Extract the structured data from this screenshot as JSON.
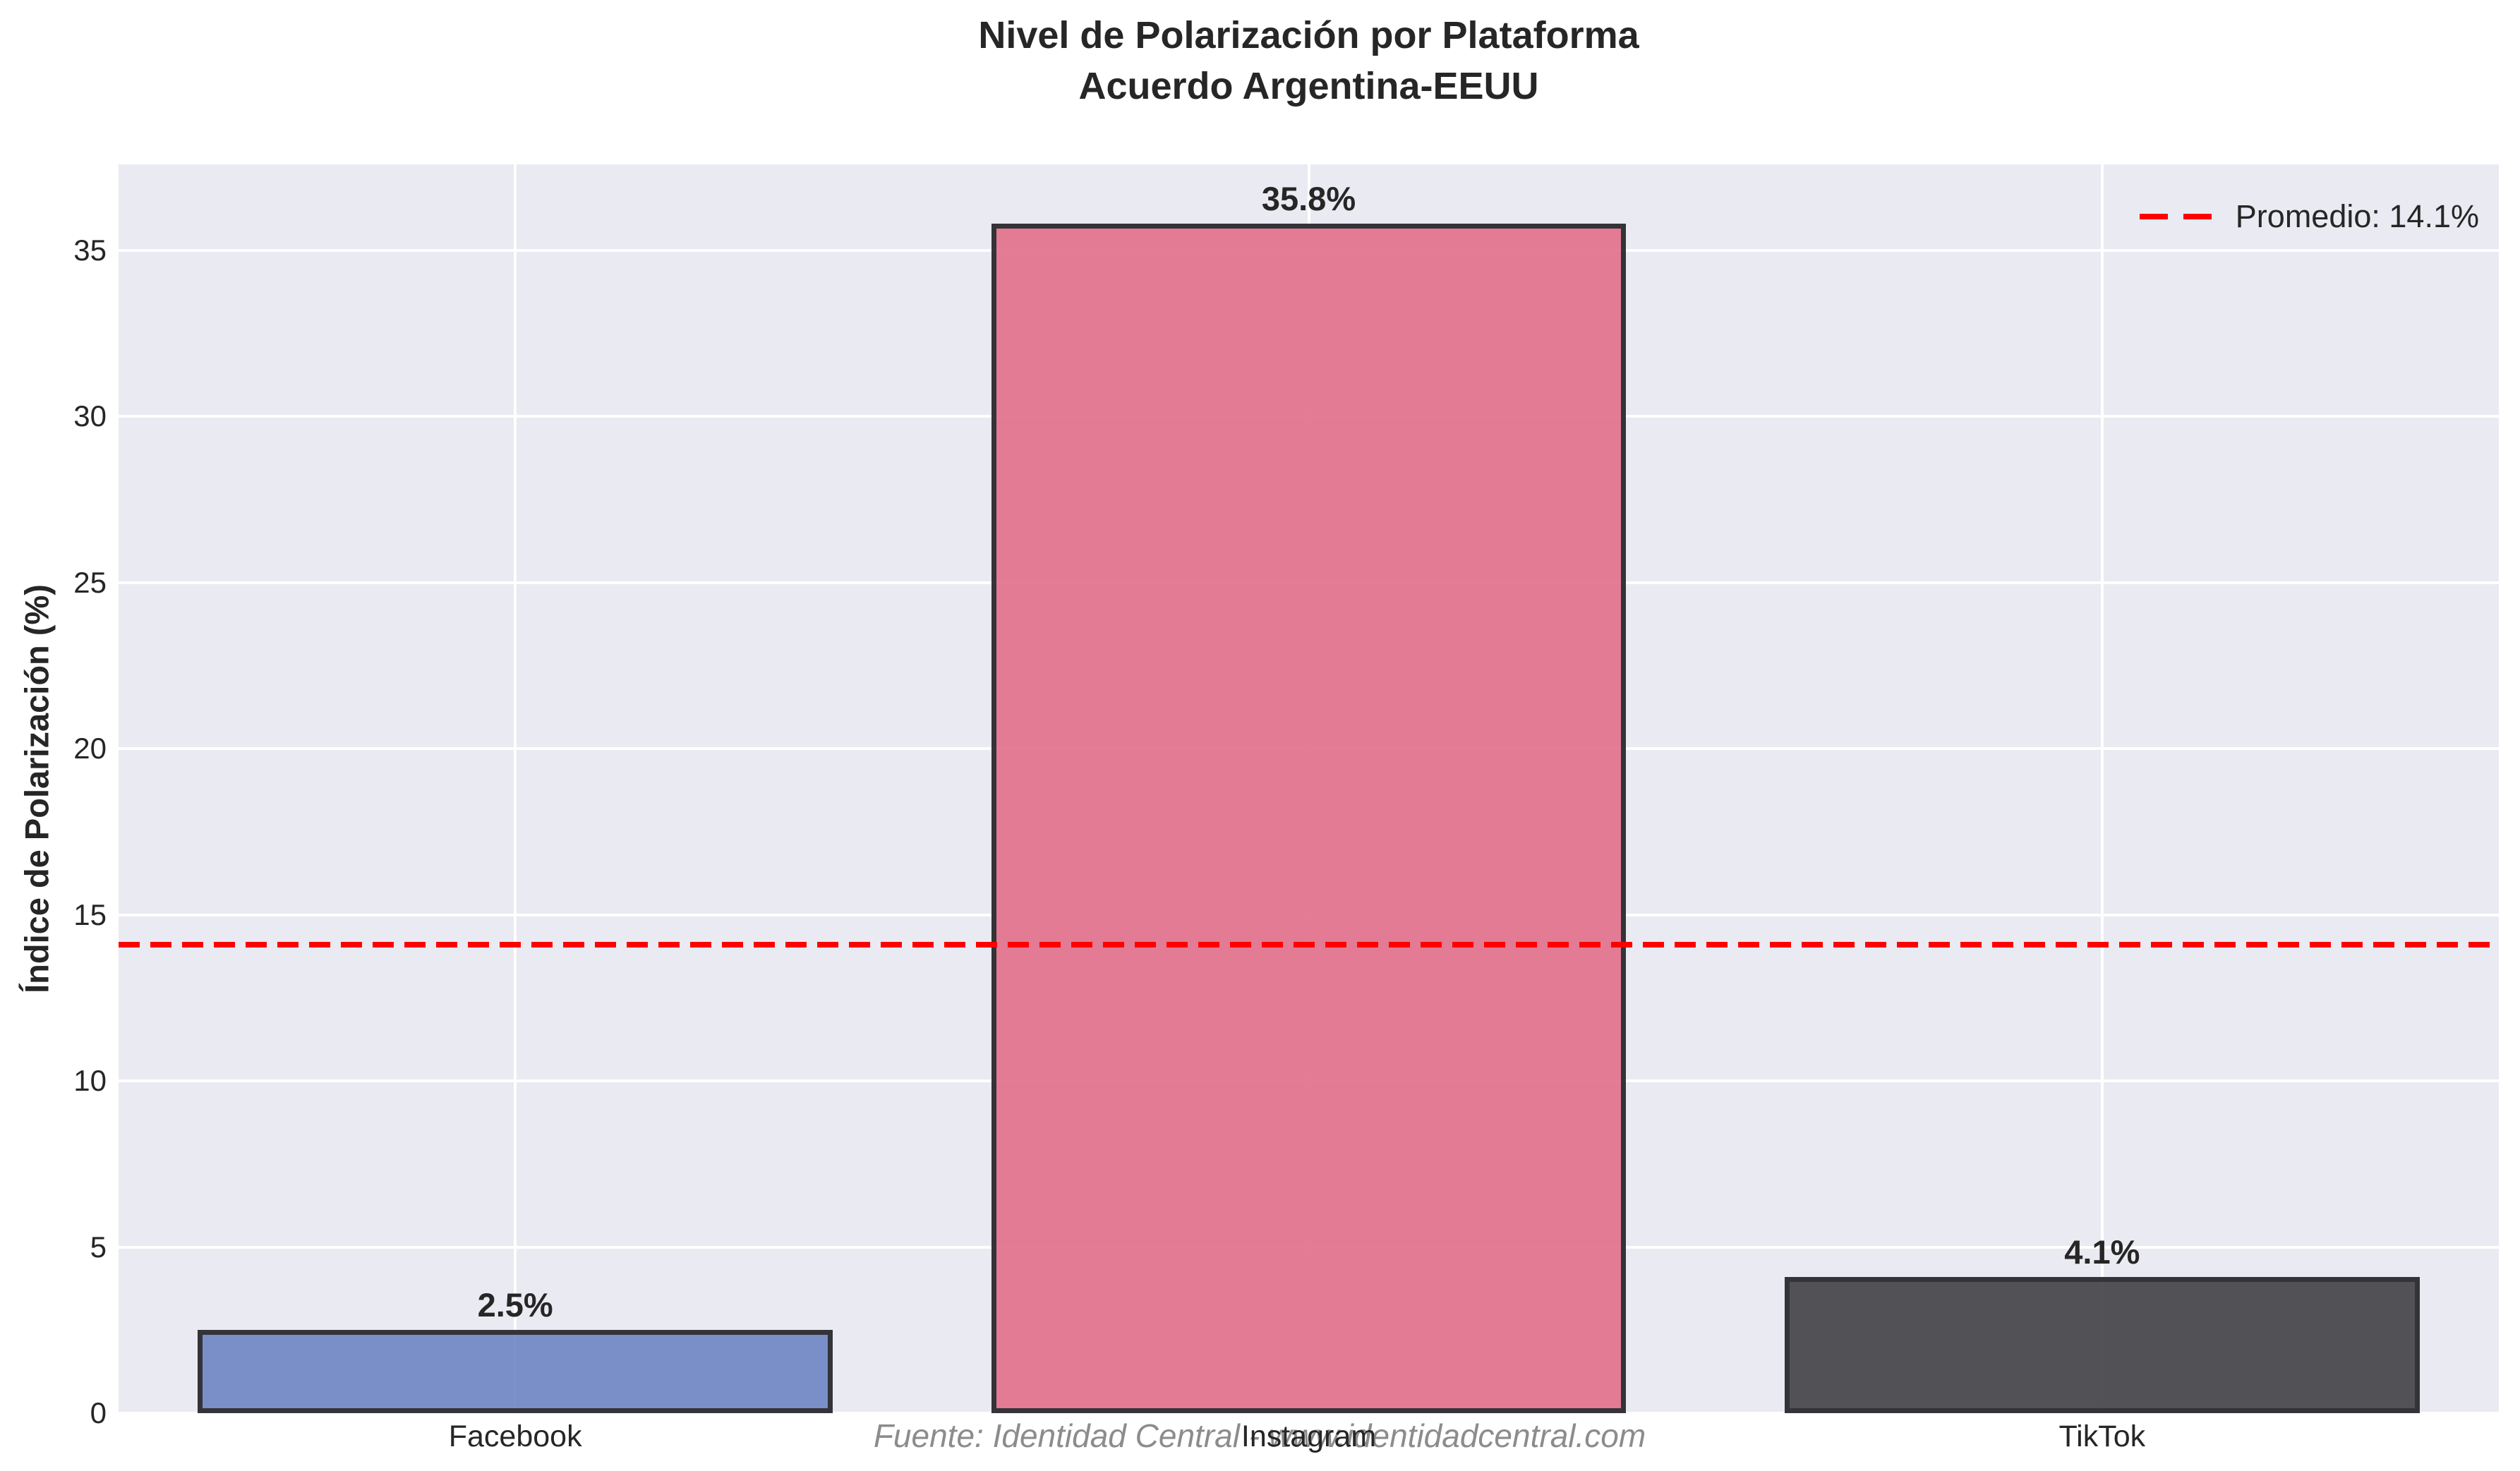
{
  "chart_data": {
    "type": "bar",
    "title": "Nivel de Polarización por Plataforma",
    "subtitle": "Acuerdo Argentina-EEUU",
    "categories": [
      "Facebook",
      "Instagram",
      "TikTok"
    ],
    "values": [
      2.5,
      35.8,
      4.1
    ],
    "value_labels": [
      "2.5%",
      "35.8%",
      "4.1%"
    ],
    "bar_colors": [
      "#7289c4",
      "#e2738c",
      "#46464b"
    ],
    "bar_edge_color": "#26262b",
    "ylabel": "Índice de Polarización (%)",
    "xlabel": "",
    "ylim": [
      0,
      37.59
    ],
    "yticks": [
      0,
      5,
      10,
      15,
      20,
      25,
      30,
      35
    ],
    "grid": true,
    "plot_background": "#eaeaf2",
    "grid_color": "#ffffff",
    "reference_line": {
      "value": 14.1,
      "color": "#ff0000",
      "style": "dashed",
      "legend_label": "Promedio: 14.1%"
    },
    "legend_position": "upper right",
    "source_note": "Fuente: Identidad Central - www.identidadcentral.com"
  }
}
